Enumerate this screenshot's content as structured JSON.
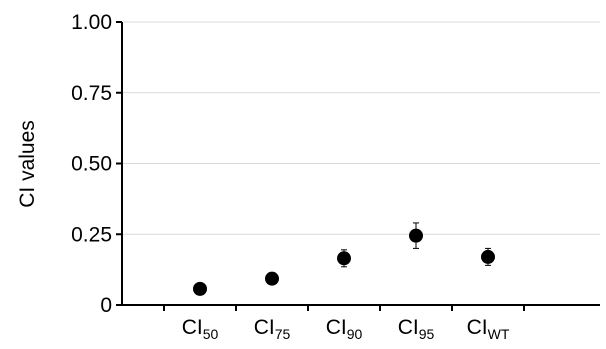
{
  "chart_data": {
    "type": "scatter",
    "title": "",
    "xlabel": "",
    "ylabel": "CI values",
    "ylim": [
      0,
      1.0
    ],
    "yticks": [
      "0",
      "0.25",
      "0.50",
      "0.75",
      "1.00"
    ],
    "ytick_values": [
      0,
      0.25,
      0.5,
      0.75,
      1.0
    ],
    "grid": "horizontal",
    "categories": [
      {
        "main": "CI",
        "sub": "50"
      },
      {
        "main": "CI",
        "sub": "75"
      },
      {
        "main": "CI",
        "sub": "90"
      },
      {
        "main": "CI",
        "sub": "95"
      },
      {
        "main": "CI",
        "sub": "WT"
      }
    ],
    "values": [
      0.057,
      0.093,
      0.165,
      0.245,
      0.17
    ],
    "errors": [
      0.008,
      0.01,
      0.03,
      0.045,
      0.03
    ],
    "marker_color": "#000000",
    "grid_color": "#d9d9d9"
  }
}
